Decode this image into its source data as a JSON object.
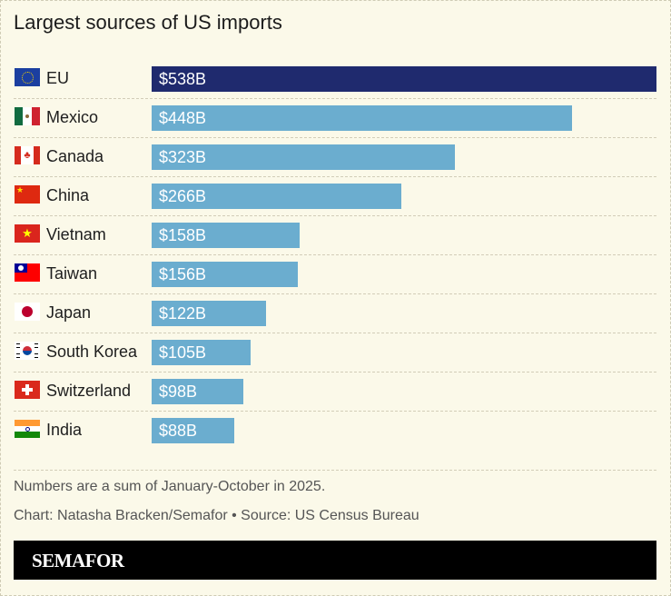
{
  "chart_data": {
    "type": "bar",
    "orientation": "horizontal",
    "title": "Largest sources of US imports",
    "categories": [
      "EU",
      "Mexico",
      "Canada",
      "China",
      "Vietnam",
      "Taiwan",
      "Japan",
      "South Korea",
      "Switzerland",
      "India"
    ],
    "values": [
      538,
      448,
      323,
      266,
      158,
      156,
      122,
      105,
      98,
      88
    ],
    "value_labels": [
      "$538B",
      "$448B",
      "$323B",
      "$266B",
      "$158B",
      "$156B",
      "$122B",
      "$105B",
      "$98B",
      "$88B"
    ],
    "flags": [
      "eu-flag",
      "mexico-flag",
      "canada-flag",
      "china-flag",
      "vietnam-flag",
      "taiwan-flag",
      "japan-flag",
      "south-korea-flag",
      "switzerland-flag",
      "india-flag"
    ],
    "unit": "billion USD",
    "xlim": [
      0,
      538
    ],
    "colors": {
      "highlight": "#1f2a6e",
      "default": "#6badcf"
    }
  },
  "footer": {
    "note": "Numbers are a sum of January-October in 2025.",
    "credit": "Chart: Natasha Bracken/Semafor • Source: US Census Bureau",
    "brand": "SEMAFOR"
  }
}
